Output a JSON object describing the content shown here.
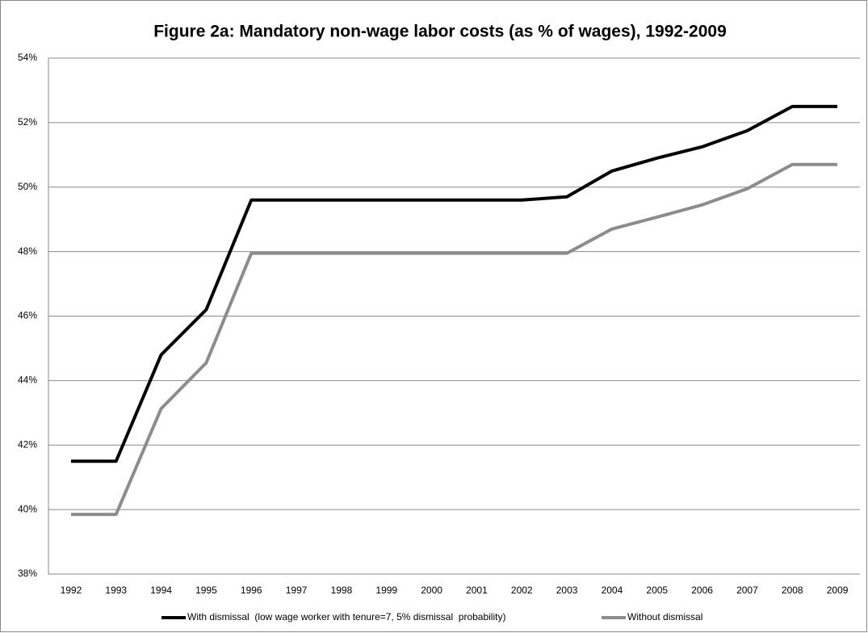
{
  "chart_data": {
    "type": "line",
    "title": "Figure 2a: Mandatory non-wage labor costs (as % of wages), 1992-2009",
    "categories": [
      "1992",
      "1993",
      "1994",
      "1995",
      "1996",
      "1997",
      "1998",
      "1999",
      "2000",
      "2001",
      "2002",
      "2003",
      "2004",
      "2005",
      "2006",
      "2007",
      "2008",
      "2009"
    ],
    "series": [
      {
        "name": "With dismissal  (low wage worker with tenure=7, 5% dismissal  probability)",
        "color": "#000000",
        "values": [
          41.5,
          41.5,
          44.8,
          46.2,
          49.6,
          49.6,
          49.6,
          49.6,
          49.6,
          49.6,
          49.6,
          49.7,
          50.5,
          50.9,
          51.25,
          51.75,
          52.5,
          52.5
        ]
      },
      {
        "name": "Without dismissal",
        "color": "#8c8c8c",
        "values": [
          39.85,
          39.85,
          43.13,
          44.55,
          47.95,
          47.95,
          47.95,
          47.95,
          47.95,
          47.95,
          47.95,
          47.95,
          48.7,
          49.07,
          49.45,
          49.95,
          50.7,
          50.7
        ]
      }
    ],
    "ylim": [
      38,
      54
    ],
    "yticks": [
      {
        "value": 38,
        "label": "38%"
      },
      {
        "value": 40,
        "label": "40%"
      },
      {
        "value": 42,
        "label": "42%"
      },
      {
        "value": 44,
        "label": "44%"
      },
      {
        "value": 46,
        "label": "46%"
      },
      {
        "value": 48,
        "label": "48%"
      },
      {
        "value": 50,
        "label": "50%"
      },
      {
        "value": 52,
        "label": "52%"
      },
      {
        "value": 54,
        "label": "54%"
      }
    ],
    "grid": true,
    "legend": "bottom"
  }
}
